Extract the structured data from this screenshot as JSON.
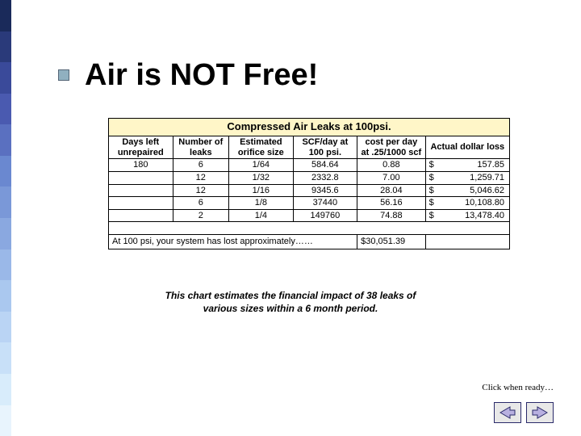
{
  "sidebar": {
    "colors": [
      "#1a2a5a",
      "#2a3a7a",
      "#3a4a9a",
      "#4a5ab0",
      "#5a70c0",
      "#6a88d0",
      "#7a98d8",
      "#8aa8e0",
      "#9ab8e8",
      "#aac8ef",
      "#bad4f4",
      "#c8e0f8",
      "#d8ecfb",
      "#e8f4fd"
    ]
  },
  "title": "Air is NOT Free!",
  "table": {
    "title": "Compressed Air Leaks at 100psi.",
    "columns": [
      "Days left unrepaired",
      "Number of leaks",
      "Estimated orifice size",
      "SCF/day at 100 psi.",
      "cost per day at .25/1000 scf",
      "Actual dollar loss"
    ],
    "col_widths_pct": [
      16,
      14,
      16,
      16,
      17,
      21
    ],
    "rows": [
      {
        "days": "180",
        "leaks": "6",
        "orifice": "1/64",
        "scf": "584.64",
        "cost": "0.88",
        "loss": "157.85"
      },
      {
        "days": "",
        "leaks": "12",
        "orifice": "1/32",
        "scf": "2332.8",
        "cost": "7.00",
        "loss": "1,259.71"
      },
      {
        "days": "",
        "leaks": "12",
        "orifice": "1/16",
        "scf": "9345.6",
        "cost": "28.04",
        "loss": "5,046.62"
      },
      {
        "days": "",
        "leaks": "6",
        "orifice": "1/8",
        "scf": "37440",
        "cost": "56.16",
        "loss": "10,108.80"
      },
      {
        "days": "",
        "leaks": "2",
        "orifice": "1/4",
        "scf": "149760",
        "cost": "74.88",
        "loss": "13,478.40"
      }
    ],
    "footer_text": "At 100 psi, your system has lost approximately……",
    "footer_total": "$30,051.39"
  },
  "caption_line1": "This chart estimates the financial impact of 38 leaks of",
  "caption_line2": "various sizes within a 6 month period.",
  "click_ready": "Click when ready…",
  "nav": {
    "arrow_fill": "#b8b0e0",
    "arrow_stroke": "#2a2a6a"
  }
}
